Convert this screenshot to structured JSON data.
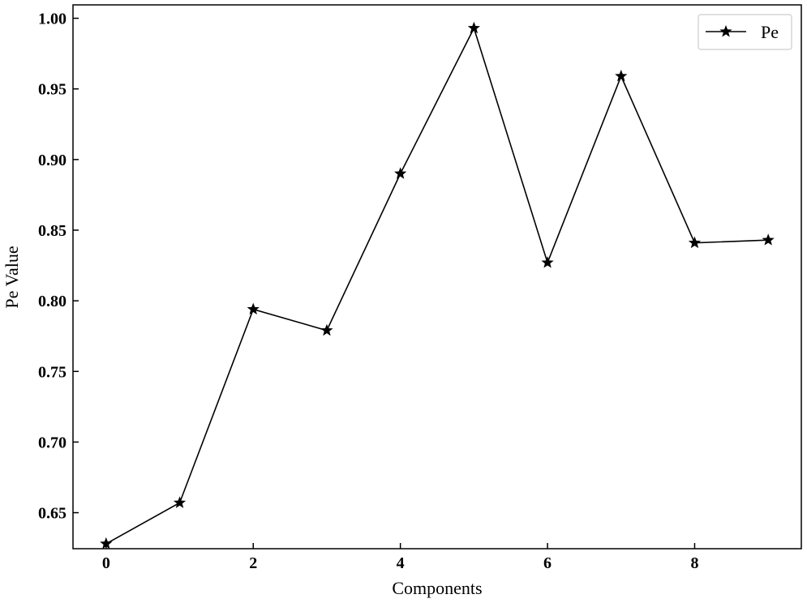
{
  "chart_data": {
    "type": "line",
    "title": "",
    "xlabel": "Components",
    "ylabel": "Pe Value",
    "xlim": [
      -0.45,
      9.45
    ],
    "ylim": [
      0.6245,
      1.0095
    ],
    "x_ticks": [
      0,
      2,
      4,
      6,
      8
    ],
    "x_tick_labels": [
      "0",
      "2",
      "4",
      "6",
      "8"
    ],
    "y_ticks": [
      0.65,
      0.7,
      0.75,
      0.8,
      0.85,
      0.9,
      0.95,
      1.0
    ],
    "y_tick_labels": [
      "0.65",
      "0.70",
      "0.75",
      "0.80",
      "0.85",
      "0.90",
      "0.95",
      "1.00"
    ],
    "grid": false,
    "legend_position": "top-right",
    "series": [
      {
        "name": "Pe",
        "color": "#000000",
        "marker": "star",
        "x": [
          0,
          1,
          2,
          3,
          4,
          5,
          6,
          7,
          8,
          9
        ],
        "values": [
          0.628,
          0.657,
          0.794,
          0.779,
          0.89,
          0.993,
          0.827,
          0.959,
          0.841,
          0.843
        ]
      }
    ]
  }
}
